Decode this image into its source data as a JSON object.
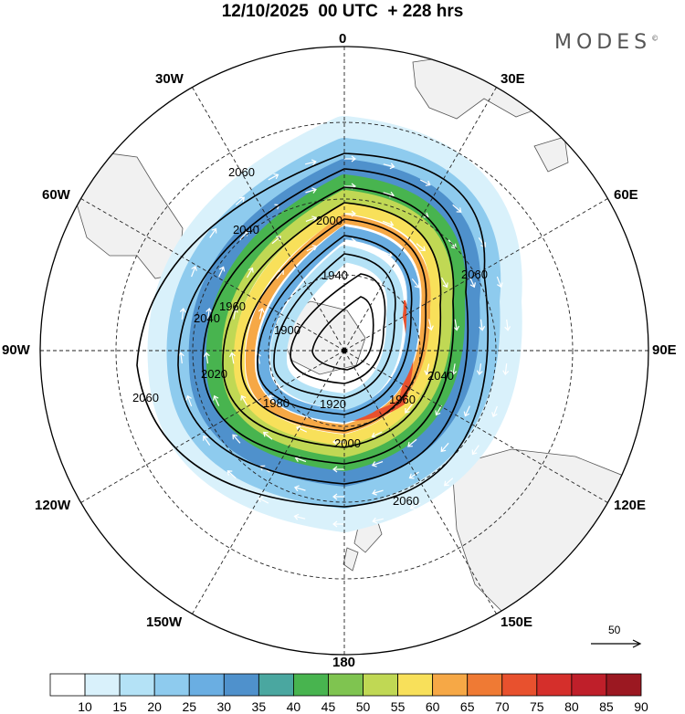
{
  "title": "12/10/2025  00 UTC  + 228 hrs",
  "brand": "MODES",
  "brand_mark": "©",
  "longitude_labels": {
    "top": "0",
    "bottom": "180",
    "left": "90W",
    "right": "90E",
    "upper_left_1": "30W",
    "upper_left_2": "60W",
    "upper_right_1": "30E",
    "upper_right_2": "60E",
    "lower_left_1": "120W",
    "lower_left_2": "150W",
    "lower_right_1": "120E",
    "lower_right_2": "150E"
  },
  "contours": [
    {
      "label": "1900",
      "level": 1900
    },
    {
      "label": "1920",
      "level": 1920
    },
    {
      "label": "1940",
      "level": 1940
    },
    {
      "label": "1960",
      "level": 1960
    },
    {
      "label": "1980",
      "level": 1980
    },
    {
      "label": "2000",
      "level": 2000
    },
    {
      "label": "2020",
      "level": 2020
    },
    {
      "label": "2040",
      "level": 2040
    },
    {
      "label": "2060",
      "level": 2060
    }
  ],
  "colorbar": {
    "labels": [
      "10",
      "15",
      "20",
      "25",
      "30",
      "35",
      "40",
      "45",
      "50",
      "55",
      "60",
      "65",
      "70",
      "75",
      "80",
      "85",
      "90"
    ],
    "colors": [
      "#ffffff",
      "#d9f1fb",
      "#b4e2f6",
      "#8ecbee",
      "#6aaee2",
      "#4f91cc",
      "#4aa7a0",
      "#48b44f",
      "#7fc450",
      "#c0d854",
      "#f8e05a",
      "#f6a846",
      "#ef7a34",
      "#e8512e",
      "#d52f2b",
      "#bf1f2a",
      "#9b1821"
    ]
  },
  "wind_scale": {
    "label": "50"
  }
}
